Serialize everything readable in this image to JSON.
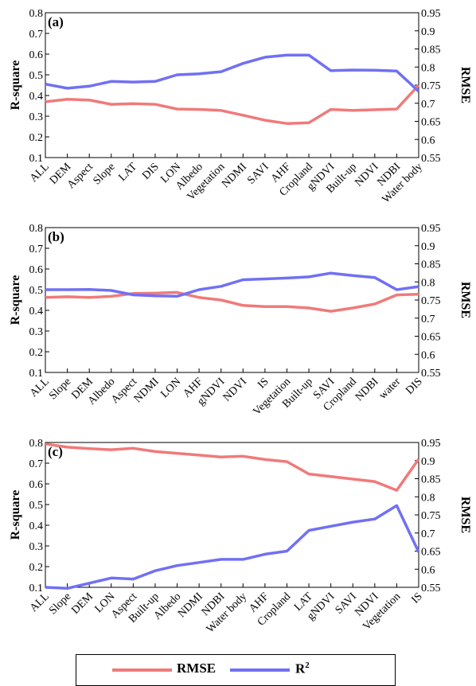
{
  "colors": {
    "rmse": "#f07a7a",
    "r2": "#7070f5"
  },
  "legend": {
    "rmse_label": "RMSE",
    "r2_label": "R",
    "r2_sup": "2"
  },
  "chart_data": [
    {
      "type": "line",
      "panel_label": "(a)",
      "ylabel_left": "R-square",
      "ylabel_right": "RMSE",
      "ylim_left": [
        0.1,
        0.8
      ],
      "ylim_right": [
        0.55,
        0.95
      ],
      "left_ticks": [
        "0.1",
        "0.2",
        "0.3",
        "0.4",
        "0.5",
        "0.6",
        "0.7",
        "0.8"
      ],
      "right_ticks": [
        "0.55",
        "0.6",
        "0.65",
        "0.7",
        "0.75",
        "0.8",
        "0.85",
        "0.9",
        "0.95"
      ],
      "categories": [
        "ALL",
        "DEM",
        "Aspect",
        "Slope",
        "LAT",
        "DIS",
        "LON",
        "Albedo",
        "Vegetation",
        "NDMI",
        "SAVI",
        "AHF",
        "Cropland",
        "gNDVI",
        "Built-up",
        "NDVI",
        "NDBI",
        "Water body"
      ],
      "series": [
        {
          "name": "RMSE",
          "axis": "right",
          "values": [
            0.704,
            0.711,
            0.709,
            0.697,
            0.699,
            0.697,
            0.684,
            0.683,
            0.68,
            0.667,
            0.653,
            0.644,
            0.646,
            0.683,
            0.68,
            0.682,
            0.684,
            0.75
          ]
        },
        {
          "name": "R2",
          "axis": "left",
          "values": [
            0.455,
            0.435,
            0.445,
            0.468,
            0.465,
            0.468,
            0.5,
            0.505,
            0.515,
            0.555,
            0.585,
            0.595,
            0.595,
            0.52,
            0.523,
            0.522,
            0.518,
            0.42
          ]
        }
      ]
    },
    {
      "type": "line",
      "panel_label": "(b)",
      "ylabel_left": "R-square",
      "ylabel_right": "RMSE",
      "ylim_left": [
        0.1,
        0.8
      ],
      "ylim_right": [
        0.55,
        0.95
      ],
      "left_ticks": [
        "0.1",
        "0.2",
        "0.3",
        "0.4",
        "0.5",
        "0.6",
        "0.7",
        "0.8"
      ],
      "right_ticks": [
        "0.55",
        "0.6",
        "0.65",
        "0.7",
        "0.75",
        "0.8",
        "0.85",
        "0.9",
        "0.95"
      ],
      "categories": [
        "ALL",
        "Slope",
        "DEM",
        "Albedo",
        "Aspect",
        "NDMI",
        "LON",
        "AHF",
        "gNDVI",
        "NDVI",
        "IS",
        "Vegetation",
        "Built-up",
        "SAVI",
        "Cropland",
        "NDBI",
        "water",
        "DIS"
      ],
      "series": [
        {
          "name": "RMSE",
          "axis": "right",
          "values": [
            0.757,
            0.759,
            0.757,
            0.76,
            0.768,
            0.769,
            0.771,
            0.757,
            0.75,
            0.735,
            0.732,
            0.732,
            0.728,
            0.719,
            0.728,
            0.739,
            0.764,
            0.766
          ]
        },
        {
          "name": "R2",
          "axis": "left",
          "values": [
            0.5,
            0.5,
            0.501,
            0.496,
            0.475,
            0.47,
            0.468,
            0.5,
            0.516,
            0.548,
            0.552,
            0.556,
            0.562,
            0.58,
            0.568,
            0.559,
            0.5,
            0.515
          ]
        }
      ]
    },
    {
      "type": "line",
      "panel_label": "(c)",
      "ylabel_left": "R-square",
      "ylabel_right": "RMSE",
      "ylim_left": [
        0.1,
        0.8
      ],
      "ylim_right": [
        0.55,
        0.95
      ],
      "left_ticks": [
        "0.1",
        "0.2",
        "0.3",
        "0.4",
        "0.5",
        "0.6",
        "0.7",
        "0.8"
      ],
      "right_ticks": [
        "0.55",
        "0.6",
        "0.65",
        "0.7",
        "0.75",
        "0.8",
        "0.85",
        "0.9",
        "0.95"
      ],
      "categories": [
        "ALL",
        "Slope",
        "DEM",
        "LON",
        "Aspect",
        "Built-up",
        "Albedo",
        "NDMI",
        "NDBI",
        "Water body",
        "AHF",
        "Cropland",
        "LAT",
        "gNDVI",
        "SAVI",
        "NDVI",
        "Vegetation",
        "IS"
      ],
      "series": [
        {
          "name": "RMSE",
          "axis": "right",
          "values": [
            0.946,
            0.937,
            0.933,
            0.93,
            0.934,
            0.925,
            0.92,
            0.915,
            0.91,
            0.912,
            0.903,
            0.897,
            0.863,
            0.856,
            0.849,
            0.842,
            0.818,
            0.904
          ]
        },
        {
          "name": "R2",
          "axis": "left",
          "values": [
            0.1,
            0.095,
            0.12,
            0.145,
            0.14,
            0.18,
            0.205,
            0.22,
            0.235,
            0.235,
            0.26,
            0.275,
            0.375,
            0.395,
            0.415,
            0.43,
            0.495,
            0.27
          ]
        }
      ]
    }
  ]
}
